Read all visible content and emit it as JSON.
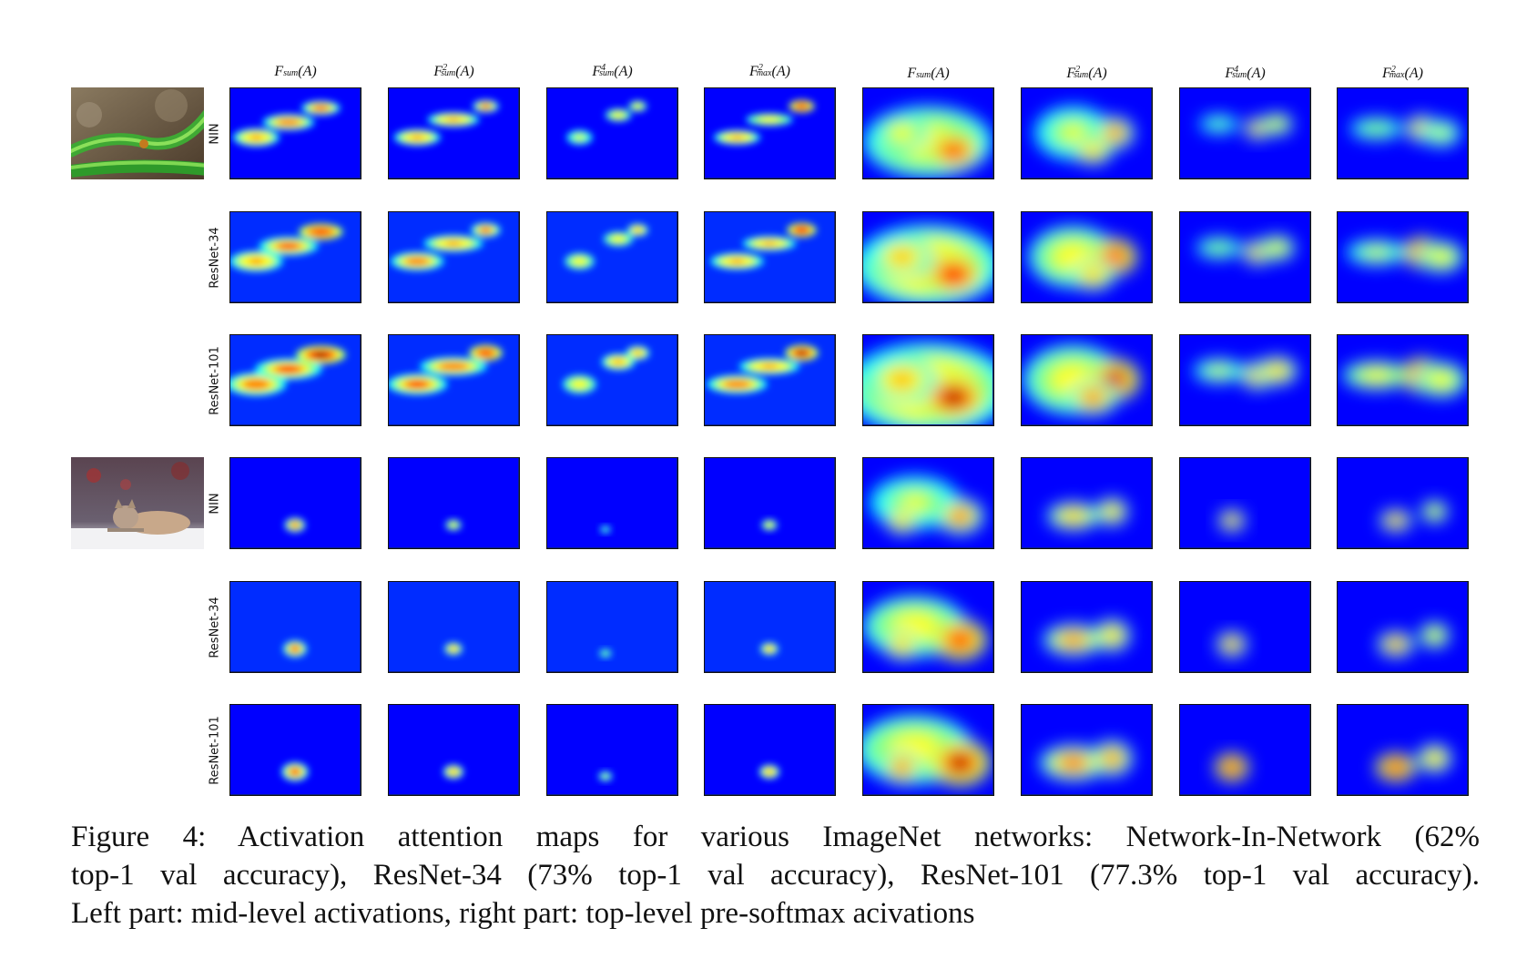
{
  "figure": {
    "column_headers": [
      {
        "base": "F",
        "sub": "sum",
        "sup": "",
        "arg": "(A)"
      },
      {
        "base": "F",
        "sub": "sum",
        "sup": "2",
        "arg": "(A)"
      },
      {
        "base": "F",
        "sub": "sum",
        "sup": "4",
        "arg": "(A)"
      },
      {
        "base": "F",
        "sub": "max",
        "sup": "2",
        "arg": "(A)"
      },
      {
        "base": "F",
        "sub": "sum",
        "sup": "",
        "arg": "(A)"
      },
      {
        "base": "F",
        "sub": "sum",
        "sup": "2",
        "arg": "(A)"
      },
      {
        "base": "F",
        "sub": "sum",
        "sup": "4",
        "arg": "(A)"
      },
      {
        "base": "F",
        "sub": "max",
        "sup": "2",
        "arg": "(A)"
      }
    ],
    "row_labels": [
      "NIN",
      "ResNet-34",
      "ResNet-101",
      "NIN",
      "ResNet-34",
      "ResNet-101"
    ],
    "thumbnails": [
      {
        "subject": "green-snake-photo",
        "colors": {
          "bg": "#6b5a44",
          "accent": "#3fa834"
        }
      },
      {
        "subject": "coyote-in-snow-photo",
        "colors": {
          "bg": "#5a4a52",
          "accent": "#c7b39a"
        }
      }
    ],
    "colormap": [
      "#00007f",
      "#0000ff",
      "#007fff",
      "#00ffff",
      "#7fff7f",
      "#ffff00",
      "#ff7f00",
      "#ff0000",
      "#7f0000"
    ]
  },
  "caption": {
    "line1": "Figure 4:  Activation attention maps for various ImageNet networks:  Network-In-Network (62%",
    "line2": "top-1 val accuracy), ResNet-34 (73% top-1 val accuracy), ResNet-101 (77.3% top-1 val accuracy).",
    "line3": "Left part: mid-level activations, right part: top-level pre-softmax acivations"
  }
}
